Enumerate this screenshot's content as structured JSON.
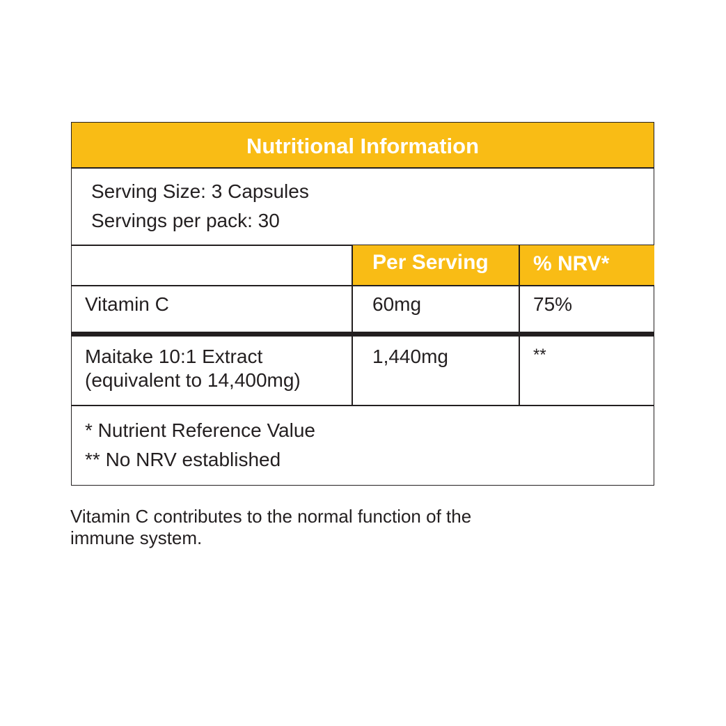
{
  "title": "Nutritional Information",
  "serving_size": "Serving Size: 3 Capsules",
  "servings_per_pack": "Servings per pack: 30",
  "columns": {
    "per_serving": "Per Serving",
    "nrv": "% NRV*"
  },
  "rows": [
    {
      "name": "Vitamin C",
      "per_serving": "60mg",
      "nrv": "75%"
    },
    {
      "name": "Maitake 10:1 Extract",
      "name_note": "(equivalent to 14,400mg)",
      "per_serving": "1,440mg",
      "nrv": "**"
    }
  ],
  "footnotes": [
    "* Nutrient Reference Value",
    "** No NRV established"
  ],
  "caption": [
    "Vitamin C contributes to the normal function of the",
    "immune system."
  ],
  "colors": {
    "accent": "#F9BC15",
    "text": "#231f20"
  }
}
